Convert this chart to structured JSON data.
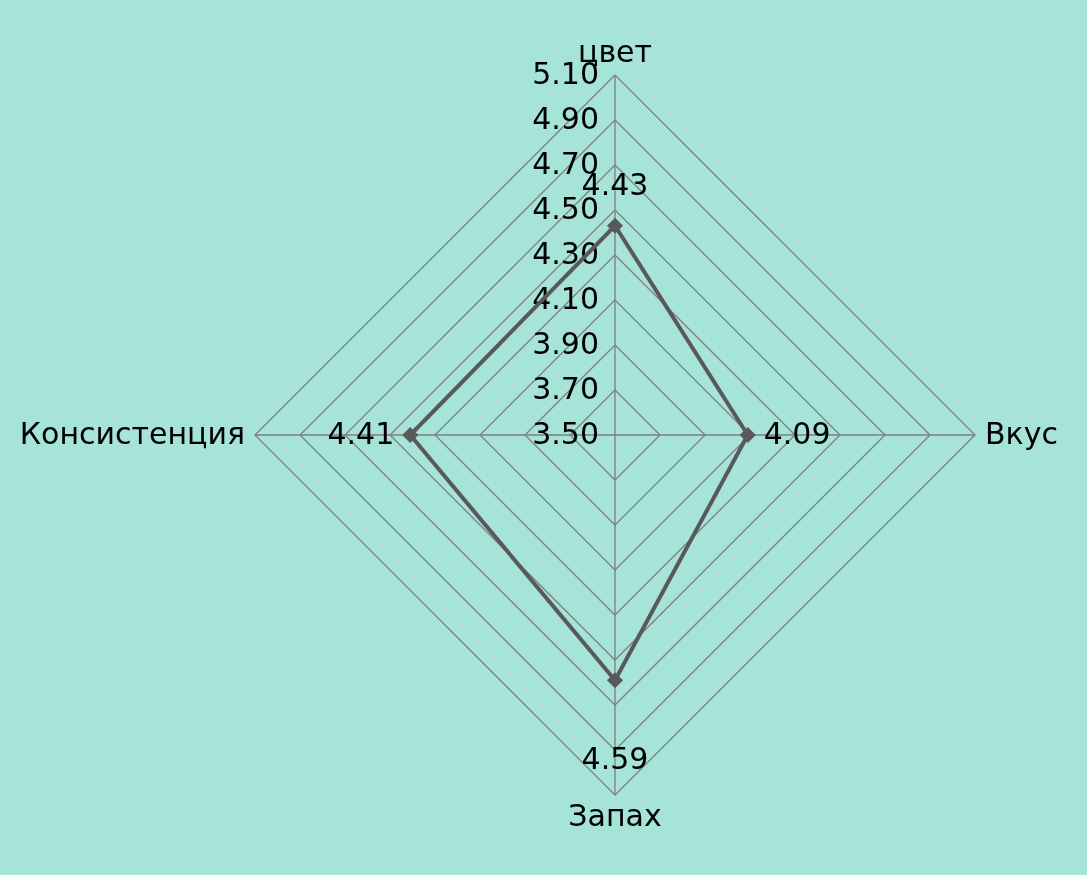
{
  "chart_data": {
    "type": "radar",
    "categories": [
      "цвет",
      "Вкус",
      "Запах",
      "Консистенция"
    ],
    "series": [
      {
        "color": "#595959",
        "values": [
          4.43,
          4.09,
          4.59,
          4.41
        ]
      }
    ],
    "ylim": [
      3.5,
      5.1
    ],
    "yticks": [
      {
        "value": 3.5,
        "label": "3.50"
      },
      {
        "value": 3.7,
        "label": "3.70"
      },
      {
        "value": 3.9,
        "label": "3.90"
      },
      {
        "value": 4.1,
        "label": "4.10"
      },
      {
        "value": 4.3,
        "label": "4.30"
      },
      {
        "value": 4.5,
        "label": "4.50"
      },
      {
        "value": 4.7,
        "label": "4.70"
      },
      {
        "value": 4.9,
        "label": "4.90"
      },
      {
        "value": 5.1,
        "label": "5.10"
      }
    ],
    "data_labels": true,
    "marker": "diamond",
    "grid": true
  }
}
